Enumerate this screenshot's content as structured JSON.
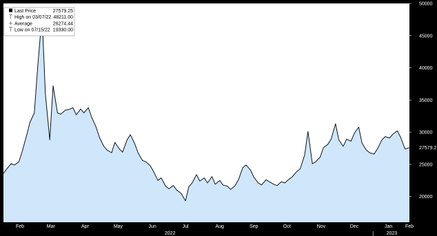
{
  "colors": {
    "fill": "#cfe6fb",
    "line": "#0b1320",
    "frame": "#000000",
    "axis_text": "#ffffff",
    "plot_bg": "#ffffff",
    "legend_bg": "#ffffff"
  },
  "chart_data": {
    "type": "area",
    "title": "",
    "xlabel": "",
    "ylabel": "",
    "ylim": [
      16000,
      50000
    ],
    "y_ticks": [
      20000,
      25000,
      30000,
      35000,
      40000,
      45000,
      50000
    ],
    "y_tick_labels": [
      "20000",
      "25000",
      "30000",
      "35000",
      "40000",
      "45000",
      "50000"
    ],
    "last_price_label": "27579.2",
    "x_month_labels": [
      "Feb",
      "Mar",
      "Apr",
      "May",
      "Jun",
      "Jul",
      "Aug",
      "Sep",
      "Oct",
      "Nov",
      "Dec",
      "Jan",
      "Feb"
    ],
    "x_year_labels": [
      "2022",
      "2023"
    ],
    "x_start": "2022-01-31",
    "x_end": "2023-02-03",
    "grid": false,
    "legend_position": "top-left",
    "legend": [
      {
        "icon": "filled-square",
        "label": "Last Price",
        "value": "27579.25"
      },
      {
        "icon": "tick",
        "label": "High on 03/07/22",
        "value": "48211.00"
      },
      {
        "icon": "plus",
        "label": "Average",
        "value": "26274.44"
      },
      {
        "icon": "tick",
        "label": "Low on 07/15/22",
        "value": "19330.00"
      }
    ],
    "series": [
      {
        "x": [
          "2022-01-31",
          "2022-02-03",
          "2022-02-07",
          "2022-02-10",
          "2022-02-14",
          "2022-02-17",
          "2022-02-21",
          "2022-02-24",
          "2022-02-28",
          "2022-03-03",
          "2022-03-07",
          "2022-03-10",
          "2022-03-14",
          "2022-03-17",
          "2022-03-21",
          "2022-03-24",
          "2022-03-28",
          "2022-03-31",
          "2022-04-04",
          "2022-04-07",
          "2022-04-11",
          "2022-04-14",
          "2022-04-18",
          "2022-04-21",
          "2022-04-25",
          "2022-04-28",
          "2022-05-02",
          "2022-05-05",
          "2022-05-09",
          "2022-05-12",
          "2022-05-16",
          "2022-05-19",
          "2022-05-23",
          "2022-05-26",
          "2022-05-30",
          "2022-06-02",
          "2022-06-06",
          "2022-06-09",
          "2022-06-13",
          "2022-06-16",
          "2022-06-20",
          "2022-06-23",
          "2022-06-27",
          "2022-06-30",
          "2022-07-04",
          "2022-07-07",
          "2022-07-11",
          "2022-07-15",
          "2022-07-18",
          "2022-07-21",
          "2022-07-25",
          "2022-07-28",
          "2022-08-01",
          "2022-08-04",
          "2022-08-08",
          "2022-08-11",
          "2022-08-15",
          "2022-08-18",
          "2022-08-22",
          "2022-08-25",
          "2022-08-29",
          "2022-09-01",
          "2022-09-05",
          "2022-09-08",
          "2022-09-12",
          "2022-09-15",
          "2022-09-19",
          "2022-09-22",
          "2022-09-26",
          "2022-09-29",
          "2022-10-03",
          "2022-10-06",
          "2022-10-10",
          "2022-10-13",
          "2022-10-17",
          "2022-10-20",
          "2022-10-24",
          "2022-10-27",
          "2022-10-31",
          "2022-11-03",
          "2022-11-07",
          "2022-11-10",
          "2022-11-14",
          "2022-11-17",
          "2022-11-21",
          "2022-11-24",
          "2022-11-28",
          "2022-12-01",
          "2022-12-05",
          "2022-12-08",
          "2022-12-12",
          "2022-12-15",
          "2022-12-19",
          "2022-12-22",
          "2022-12-26",
          "2022-12-29",
          "2023-01-02",
          "2023-01-05",
          "2023-01-09",
          "2023-01-12",
          "2023-01-16",
          "2023-01-19",
          "2023-01-23",
          "2023-01-26",
          "2023-01-30",
          "2023-02-03"
        ],
        "y": [
          23600,
          24300,
          25100,
          24900,
          25400,
          27000,
          29500,
          31500,
          33000,
          40000,
          48211,
          36000,
          28800,
          37200,
          33000,
          32800,
          33400,
          33500,
          33800,
          32700,
          33600,
          33000,
          33800,
          32300,
          30800,
          29200,
          27800,
          27200,
          26800,
          28400,
          27400,
          26900,
          28800,
          29600,
          28200,
          26800,
          25600,
          25400,
          24800,
          23900,
          22500,
          22900,
          21600,
          21200,
          21700,
          21000,
          20500,
          19330,
          21500,
          22100,
          23400,
          22400,
          22900,
          22100,
          23100,
          21900,
          22500,
          21800,
          21600,
          21100,
          21700,
          22600,
          24500,
          24900,
          24100,
          23000,
          22100,
          21800,
          22600,
          22300,
          21900,
          21700,
          22300,
          22100,
          22700,
          23100,
          23900,
          24300,
          26400,
          30100,
          25100,
          25400,
          26100,
          27600,
          28100,
          28900,
          31300,
          28800,
          27800,
          28900,
          28600,
          29800,
          30800,
          28300,
          27200,
          26800,
          26600,
          27400,
          28800,
          29300,
          29100,
          29700,
          30200,
          29200,
          27400,
          27579.25
        ]
      }
    ]
  }
}
